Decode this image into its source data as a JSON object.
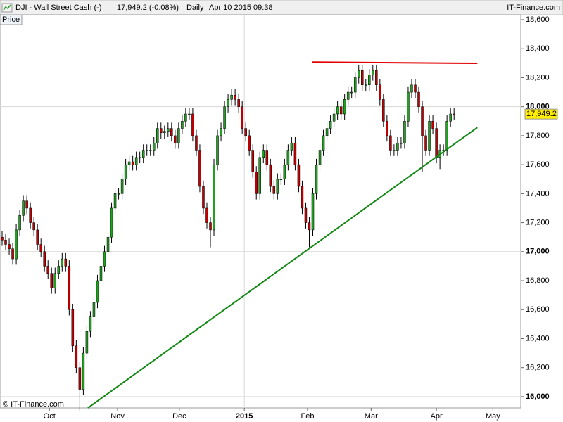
{
  "chart_data": {
    "type": "candlestick",
    "title": "DJI - Wall Street Cash (-)",
    "last": "17,949.2 (-0.08%)",
    "period": "Daily",
    "timestamp": "Apr 10 2015 09:38",
    "y_label": "Price",
    "brand": "IT-Finance.com",
    "copyright": "© IT-Finance.com",
    "last_label": "17,949.2",
    "up_color": "#22a022",
    "down_color": "#c00000",
    "open": [
      17100,
      17080,
      17050,
      17020,
      16950,
      17150,
      17250,
      17350,
      17300,
      17200,
      17150,
      17050,
      17000,
      16900,
      16850,
      16750,
      16850,
      16900,
      16950,
      16900,
      16600,
      16350,
      16200,
      16050,
      16300,
      16450,
      16550,
      16650,
      16800,
      16900,
      17000,
      17100,
      17300,
      17400,
      17400,
      17500,
      17600,
      17620,
      17600,
      17650,
      17650,
      17700,
      17700,
      17700,
      17750,
      17850,
      17820,
      17830,
      17850,
      17800,
      17750,
      17850,
      17900,
      17950,
      17950,
      17800,
      17700,
      17450,
      17300,
      17200,
      17150,
      17600,
      17800,
      17850,
      18000,
      18050,
      18080,
      18050,
      18000,
      17850,
      17800,
      17700,
      17550,
      17400,
      17650,
      17700,
      17600,
      17450,
      17400,
      17500,
      17500,
      17600,
      17700,
      17750,
      17600,
      17450,
      17300,
      17200,
      17150,
      17400,
      17600,
      17700,
      17800,
      17850,
      17900,
      17950,
      18000,
      17950,
      18050,
      18100,
      18100,
      18200,
      18250,
      18150,
      18150,
      18220,
      18250,
      18150,
      18050,
      17900,
      17800,
      17700,
      17700,
      17750,
      17750,
      17900,
      18100,
      18150,
      18100,
      18000,
      17800,
      17700,
      17900,
      17850,
      17650,
      17700,
      17700,
      17900,
      17950
    ],
    "high": [
      17140,
      17120,
      17090,
      17060,
      17190,
      17290,
      17390,
      17390,
      17340,
      17240,
      17190,
      17090,
      17040,
      16940,
      16890,
      16890,
      16940,
      16990,
      16990,
      16940,
      16640,
      16390,
      16240,
      16340,
      16490,
      16590,
      16690,
      16840,
      16940,
      17040,
      17140,
      17340,
      17440,
      17440,
      17540,
      17640,
      17660,
      17660,
      17690,
      17690,
      17740,
      17740,
      17740,
      17790,
      17890,
      17890,
      17870,
      17890,
      17890,
      17840,
      17890,
      17940,
      17990,
      17990,
      17990,
      17840,
      17740,
      17490,
      17340,
      17240,
      17640,
      17840,
      17890,
      18040,
      18090,
      18120,
      18120,
      18090,
      18040,
      17890,
      17840,
      17740,
      17590,
      17690,
      17740,
      17740,
      17640,
      17490,
      17540,
      17540,
      17640,
      17740,
      17790,
      17790,
      17640,
      17490,
      17340,
      17240,
      17440,
      17640,
      17740,
      17840,
      17890,
      17940,
      17990,
      18040,
      18040,
      18090,
      18140,
      18140,
      18240,
      18290,
      18290,
      18190,
      18260,
      18290,
      18290,
      18190,
      18090,
      17940,
      17840,
      17740,
      17790,
      17790,
      17940,
      18140,
      18190,
      18190,
      18140,
      18040,
      17840,
      17940,
      17940,
      17890,
      17740,
      17740,
      17940,
      17990,
      17990
    ],
    "low": [
      17040,
      17010,
      16980,
      16910,
      16910,
      17110,
      17210,
      17260,
      17160,
      17110,
      17010,
      16960,
      16860,
      16810,
      16710,
      16710,
      16810,
      16860,
      16860,
      16560,
      16310,
      16160,
      15900,
      16010,
      16260,
      16410,
      16510,
      16610,
      16760,
      16860,
      16960,
      17060,
      17260,
      17360,
      17360,
      17460,
      17560,
      17560,
      17560,
      17610,
      17610,
      17660,
      17660,
      17660,
      17710,
      17780,
      17780,
      17790,
      17760,
      17710,
      17710,
      17810,
      17860,
      17910,
      17760,
      17660,
      17410,
      17260,
      17160,
      17030,
      17110,
      17560,
      17760,
      17810,
      17960,
      18010,
      18010,
      17960,
      17810,
      17760,
      17660,
      17510,
      17360,
      17360,
      17610,
      17560,
      17410,
      17360,
      17360,
      17460,
      17460,
      17560,
      17660,
      17560,
      17410,
      17260,
      17160,
      17030,
      17110,
      17360,
      17560,
      17660,
      17760,
      17810,
      17860,
      17910,
      17910,
      17910,
      18010,
      18060,
      18060,
      18160,
      18110,
      18110,
      18110,
      18180,
      18110,
      18010,
      17860,
      17760,
      17660,
      17660,
      17660,
      17710,
      17710,
      17860,
      18060,
      18060,
      17960,
      17550,
      17660,
      17660,
      17810,
      17610,
      17570,
      17660,
      17660,
      17860,
      17909.2
    ],
    "close": [
      17080,
      17050,
      17020,
      16950,
      17150,
      17250,
      17350,
      17300,
      17200,
      17150,
      17050,
      17000,
      16900,
      16850,
      16750,
      16850,
      16900,
      16950,
      16900,
      16600,
      16350,
      16200,
      16050,
      16300,
      16450,
      16550,
      16650,
      16800,
      16900,
      17000,
      17100,
      17300,
      17400,
      17400,
      17500,
      17600,
      17620,
      17600,
      17650,
      17650,
      17700,
      17700,
      17700,
      17750,
      17850,
      17820,
      17830,
      17850,
      17800,
      17750,
      17850,
      17900,
      17950,
      17950,
      17800,
      17700,
      17450,
      17300,
      17200,
      17150,
      17600,
      17800,
      17850,
      18000,
      18050,
      18080,
      18050,
      18000,
      17850,
      17800,
      17700,
      17550,
      17400,
      17650,
      17700,
      17600,
      17450,
      17400,
      17500,
      17500,
      17600,
      17700,
      17750,
      17600,
      17450,
      17300,
      17200,
      17150,
      17400,
      17600,
      17700,
      17800,
      17850,
      17900,
      17950,
      18000,
      17950,
      18050,
      18100,
      18100,
      18200,
      18250,
      18150,
      18150,
      18220,
      18250,
      18150,
      18050,
      17900,
      17800,
      17700,
      17700,
      17750,
      17750,
      17900,
      18100,
      18150,
      18100,
      18000,
      17800,
      17700,
      17900,
      17850,
      17650,
      17700,
      17700,
      17900,
      17950,
      17949.2
    ],
    "lines": [
      {
        "color": "#e00000",
        "x": [
          87.7,
          134.6
        ],
        "y": [
          18308,
          18299
        ]
      },
      {
        "color": "#118811",
        "x": [
          24.3,
          134.6
        ],
        "y": [
          15922,
          17857
        ]
      }
    ],
    "xlim": [
      -0.6,
      146.9
    ],
    "xticks": [
      {
        "value": 13.4,
        "label": "Oct"
      },
      {
        "value": 32.7,
        "label": "Nov"
      },
      {
        "value": 50.2,
        "label": "Dec"
      },
      {
        "value": 68.6,
        "label": "2015"
      },
      {
        "value": 86.5,
        "label": "Feb"
      },
      {
        "value": 104.5,
        "label": "Mar"
      },
      {
        "value": 123,
        "label": "Apr"
      },
      {
        "value": 139,
        "label": "May"
      }
    ],
    "ylim": [
      15922,
      18634
    ],
    "yticks": [
      {
        "value": 16000,
        "label": "16,000"
      },
      {
        "value": 16200,
        "label": "16,200"
      },
      {
        "value": 16400,
        "label": "16,400"
      },
      {
        "value": 16600,
        "label": "16,600"
      },
      {
        "value": 16800,
        "label": "16,800"
      },
      {
        "value": 17000,
        "label": "17,000"
      },
      {
        "value": 17200,
        "label": "17,200"
      },
      {
        "value": 17400,
        "label": "17,400"
      },
      {
        "value": 17600,
        "label": "17,600"
      },
      {
        "value": 17800,
        "label": "17,800"
      },
      {
        "value": 18000,
        "label": "18,000"
      },
      {
        "value": 18200,
        "label": "18,200"
      },
      {
        "value": 18400,
        "label": "18,400"
      },
      {
        "value": 18600,
        "label": "18,600"
      }
    ]
  }
}
